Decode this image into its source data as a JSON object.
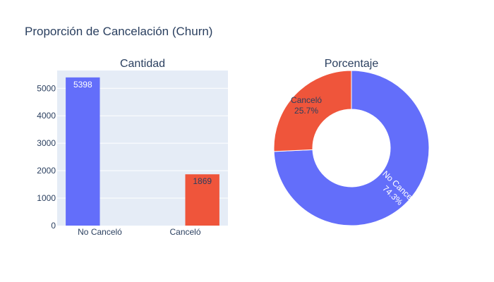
{
  "figure": {
    "title": "Proporción de Cancelación (Churn)",
    "background": "#ffffff",
    "plot_background": "#e5ecf6",
    "grid_color": "#ffffff",
    "text_color": "#2a3f5f"
  },
  "chart_data": [
    {
      "type": "bar",
      "title": "Cantidad",
      "categories": [
        "No Canceló",
        "Canceló"
      ],
      "series": [
        {
          "values": [
            5398,
            null
          ],
          "color": "#636efa"
        },
        {
          "values": [
            null,
            1869
          ],
          "color": "#ef553b"
        }
      ],
      "data_labels": [
        "5398",
        "1869"
      ],
      "ylim": [
        0,
        5650
      ],
      "yticks": [
        0,
        1000,
        2000,
        3000,
        4000,
        5000
      ],
      "ytick_labels": [
        "0",
        "1000",
        "2000",
        "3000",
        "4000",
        "5000"
      ],
      "grid": true,
      "xlabel": "",
      "ylabel": ""
    },
    {
      "type": "pie",
      "hole": true,
      "title": "Porcentaje",
      "slices": [
        {
          "label": "No Canceló",
          "value": 74.3,
          "value_label": "74.3%",
          "color": "#636efa",
          "text_color": "#ffffff"
        },
        {
          "label": "Canceló",
          "value": 25.7,
          "value_label": "25.7%",
          "color": "#ef553b",
          "text_color": "#2a3f5f"
        }
      ]
    }
  ]
}
